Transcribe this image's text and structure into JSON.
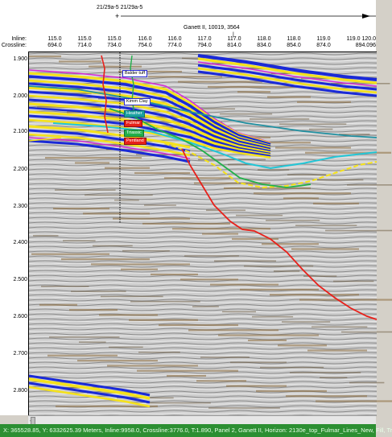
{
  "header": {
    "well_label": "21/29a-5  21/29a-5",
    "well_marker_glyph": "+",
    "intersect_label": "Ganett II, 10019, 3564",
    "inline_label": "Inline:",
    "crossline_label": "Crossline:",
    "inline_ticks": [
      "115.0",
      "115.0",
      "115.0",
      "116.0",
      "116.0",
      "117.0",
      "117.0",
      "118.0",
      "118.0",
      "119.0",
      "119.0",
      "120.0"
    ],
    "crossline_ticks": [
      "694.0",
      "714.0",
      "734.0",
      "754.0",
      "774.0",
      "794.0",
      "814.0",
      "834.0",
      "854.0",
      "874.0",
      "894.096"
    ]
  },
  "y_axis": {
    "labels": [
      "1.900",
      "2.000",
      "2.100",
      "2.200",
      "2.300",
      "2.400",
      "2.500",
      "2.600",
      "2.700",
      "2.800"
    ]
  },
  "horizons": {
    "labels": [
      "Balder tuff",
      "Kimm Clay",
      "Heather",
      "Fulmar",
      "Triassic",
      "Pentland"
    ],
    "colors": {
      "yellow": "#f5e21a",
      "blue": "#1a2ad6",
      "cyan": "#22c6d6",
      "red": "#e8201a",
      "green": "#22b04a",
      "magenta": "#d42ad6",
      "teal": "#1f8fa0"
    }
  },
  "scroll": {
    "left_arrow": "◂"
  },
  "status": {
    "text": "X: 365528.85, Y: 6332625.39 Meters, Inline:9958.0, Crossline:3776.0, T:1.890, Panel 2, Ganett II, Horizon: 2130e_top_Fulmar_Lines_New, Fill, Tr"
  }
}
